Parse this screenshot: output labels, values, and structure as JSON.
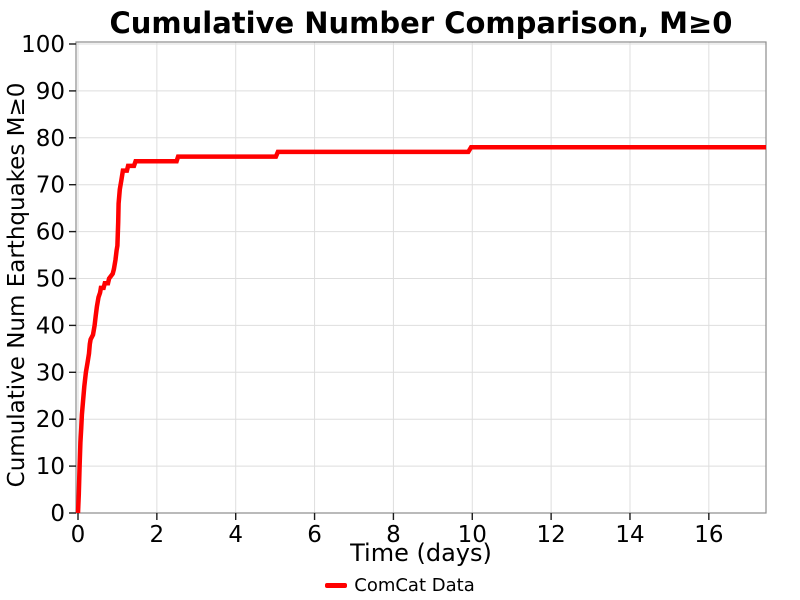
{
  "chart_data": {
    "type": "line",
    "title": "Cumulative Number Comparison, M≥0",
    "xlabel": "Time (days)",
    "ylabel": "Cumulative Num Earthquakes M≥0",
    "xlim": [
      0,
      17.45
    ],
    "ylim": [
      0,
      100
    ],
    "x_ticks": [
      0,
      2,
      4,
      6,
      8,
      10,
      12,
      14,
      16
    ],
    "y_ticks": [
      0,
      10,
      20,
      30,
      40,
      50,
      60,
      70,
      80,
      90,
      100
    ],
    "grid": true,
    "legend_position": "bottom-center",
    "series": [
      {
        "name": "ComCat Data",
        "color": "#ff0000",
        "points": [
          [
            0,
            0
          ],
          [
            0.02,
            4
          ],
          [
            0.04,
            10
          ],
          [
            0.06,
            15
          ],
          [
            0.08,
            18
          ],
          [
            0.1,
            21
          ],
          [
            0.13,
            24
          ],
          [
            0.16,
            27
          ],
          [
            0.2,
            30
          ],
          [
            0.24,
            32
          ],
          [
            0.28,
            34
          ],
          [
            0.3,
            36
          ],
          [
            0.32,
            37
          ],
          [
            0.38,
            38
          ],
          [
            0.42,
            40
          ],
          [
            0.45,
            42
          ],
          [
            0.48,
            44
          ],
          [
            0.52,
            46
          ],
          [
            0.56,
            47
          ],
          [
            0.58,
            48
          ],
          [
            0.65,
            48
          ],
          [
            0.68,
            49
          ],
          [
            0.76,
            49
          ],
          [
            0.79,
            50
          ],
          [
            0.88,
            51
          ],
          [
            0.91,
            52
          ],
          [
            0.95,
            54
          ],
          [
            0.98,
            56
          ],
          [
            1.0,
            57
          ],
          [
            1.02,
            62
          ],
          [
            1.03,
            66
          ],
          [
            1.06,
            69
          ],
          [
            1.1,
            71
          ],
          [
            1.14,
            73
          ],
          [
            1.24,
            73
          ],
          [
            1.27,
            74
          ],
          [
            1.42,
            74
          ],
          [
            1.46,
            75
          ],
          [
            2.5,
            75
          ],
          [
            2.54,
            76
          ],
          [
            5.02,
            76
          ],
          [
            5.07,
            77
          ],
          [
            9.9,
            77
          ],
          [
            9.97,
            78
          ],
          [
            17.45,
            78
          ]
        ]
      }
    ]
  },
  "figure": {
    "legend": {
      "items": [
        {
          "label": "ComCat Data",
          "color": "#ff0000"
        }
      ]
    }
  },
  "colors": {
    "line": "#ff0000",
    "grid": "#dedede",
    "spine": "#8c8c8c",
    "tick": "#1a1a1a",
    "text": "#000000"
  }
}
